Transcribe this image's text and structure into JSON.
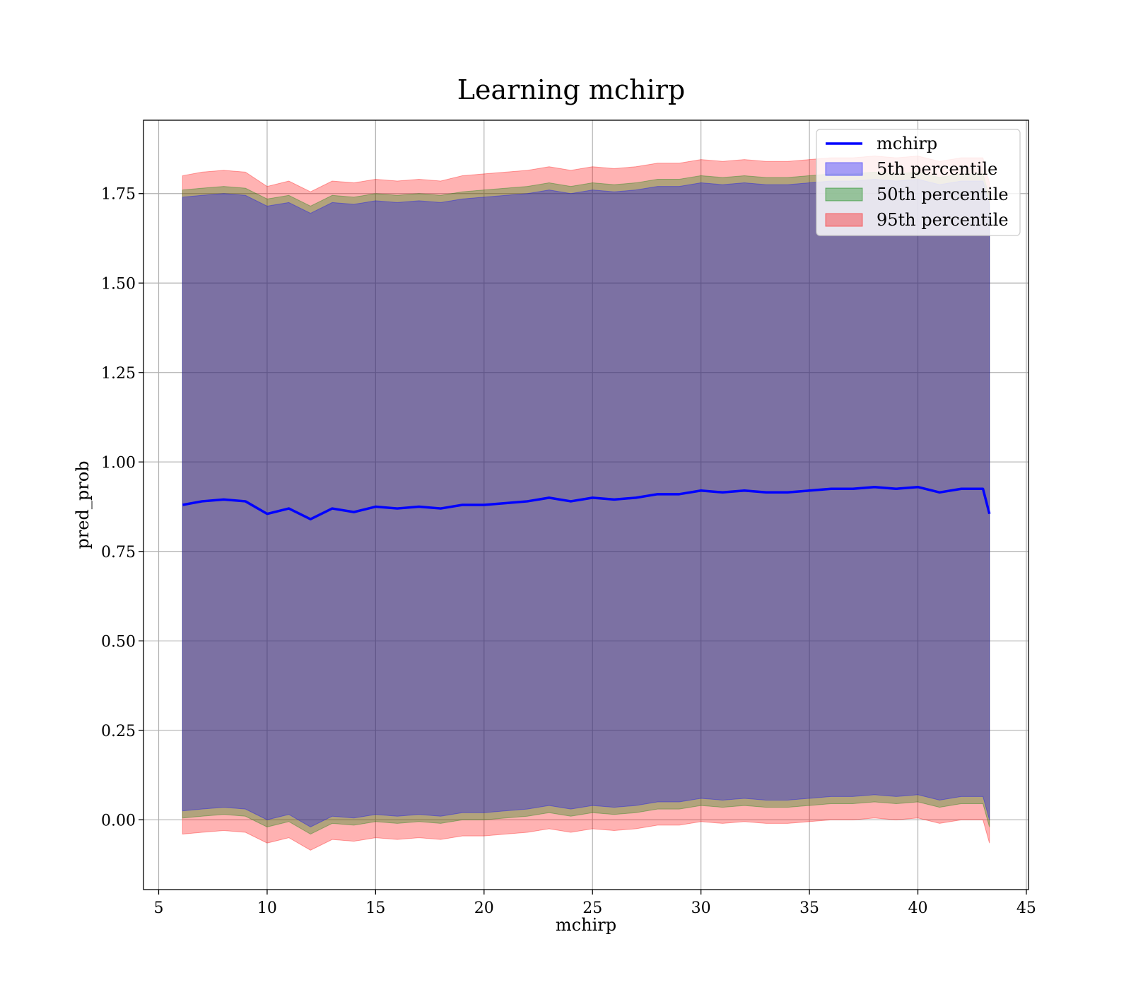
{
  "chart_data": {
    "type": "area",
    "title": "Learning mchirp",
    "xlabel": "mchirp",
    "ylabel": "pred_prob",
    "xlim": [
      4.3,
      45.1
    ],
    "ylim": [
      -0.195,
      1.955
    ],
    "grid": true,
    "legend_position": "top-right",
    "xticks": [
      5,
      10,
      15,
      20,
      25,
      30,
      35,
      40,
      45
    ],
    "xtick_labels": [
      "5",
      "10",
      "15",
      "20",
      "25",
      "30",
      "35",
      "40",
      "45"
    ],
    "yticks": [
      0.0,
      0.25,
      0.5,
      0.75,
      1.0,
      1.25,
      1.5,
      1.75
    ],
    "ytick_labels": [
      "0.00",
      "0.25",
      "0.50",
      "0.75",
      "1.00",
      "1.25",
      "1.50",
      "1.75"
    ],
    "x": [
      6.1,
      7,
      8,
      9,
      10,
      11,
      12,
      13,
      14,
      15,
      16,
      17,
      18,
      19,
      20,
      21,
      22,
      23,
      24,
      25,
      26,
      27,
      28,
      29,
      30,
      31,
      32,
      33,
      34,
      35,
      36,
      37,
      38,
      39,
      40,
      41,
      42,
      43,
      43.3
    ],
    "series": [
      {
        "name": "mchirp",
        "kind": "line",
        "color": "#0000ff",
        "values": [
          0.88,
          0.89,
          0.895,
          0.89,
          0.855,
          0.87,
          0.84,
          0.87,
          0.86,
          0.875,
          0.87,
          0.875,
          0.87,
          0.88,
          0.88,
          0.885,
          0.89,
          0.9,
          0.89,
          0.9,
          0.895,
          0.9,
          0.91,
          0.91,
          0.92,
          0.915,
          0.92,
          0.915,
          0.915,
          0.92,
          0.925,
          0.925,
          0.93,
          0.925,
          0.93,
          0.915,
          0.925,
          0.925,
          0.855
        ]
      },
      {
        "name": "5th percentile",
        "kind": "band",
        "color": "#0000ff",
        "lower": [
          0.025,
          0.03,
          0.035,
          0.03,
          0.0,
          0.015,
          -0.02,
          0.01,
          0.005,
          0.015,
          0.01,
          0.015,
          0.01,
          0.02,
          0.02,
          0.025,
          0.03,
          0.04,
          0.03,
          0.04,
          0.035,
          0.04,
          0.05,
          0.05,
          0.06,
          0.055,
          0.06,
          0.055,
          0.055,
          0.06,
          0.065,
          0.065,
          0.07,
          0.065,
          0.07,
          0.055,
          0.065,
          0.065,
          0.0
        ],
        "upper": [
          1.74,
          1.745,
          1.75,
          1.745,
          1.715,
          1.725,
          1.695,
          1.725,
          1.72,
          1.73,
          1.725,
          1.73,
          1.725,
          1.735,
          1.74,
          1.745,
          1.75,
          1.76,
          1.75,
          1.76,
          1.755,
          1.76,
          1.77,
          1.77,
          1.78,
          1.775,
          1.78,
          1.775,
          1.775,
          1.78,
          1.785,
          1.785,
          1.79,
          1.785,
          1.79,
          1.775,
          1.785,
          1.785,
          1.72
        ]
      },
      {
        "name": "50th percentile",
        "kind": "band",
        "color": "#008000",
        "lower": [
          0.005,
          0.01,
          0.015,
          0.01,
          -0.02,
          -0.005,
          -0.04,
          -0.01,
          -0.015,
          -0.005,
          -0.01,
          -0.005,
          -0.01,
          0.0,
          0.0,
          0.005,
          0.01,
          0.02,
          0.01,
          0.02,
          0.015,
          0.02,
          0.03,
          0.03,
          0.04,
          0.035,
          0.04,
          0.035,
          0.035,
          0.04,
          0.045,
          0.045,
          0.05,
          0.045,
          0.05,
          0.035,
          0.045,
          0.045,
          -0.02
        ],
        "upper": [
          1.76,
          1.765,
          1.77,
          1.765,
          1.735,
          1.745,
          1.715,
          1.745,
          1.74,
          1.75,
          1.745,
          1.75,
          1.745,
          1.755,
          1.76,
          1.765,
          1.77,
          1.78,
          1.77,
          1.78,
          1.775,
          1.78,
          1.79,
          1.79,
          1.8,
          1.795,
          1.8,
          1.795,
          1.795,
          1.8,
          1.805,
          1.805,
          1.81,
          1.805,
          1.81,
          1.795,
          1.805,
          1.805,
          1.74
        ]
      },
      {
        "name": "95th percentile",
        "kind": "band",
        "color": "#ff0000",
        "lower": [
          -0.04,
          -0.035,
          -0.03,
          -0.035,
          -0.065,
          -0.05,
          -0.085,
          -0.055,
          -0.06,
          -0.05,
          -0.055,
          -0.05,
          -0.055,
          -0.045,
          -0.045,
          -0.04,
          -0.035,
          -0.025,
          -0.035,
          -0.025,
          -0.03,
          -0.025,
          -0.015,
          -0.015,
          -0.005,
          -0.01,
          -0.005,
          -0.01,
          -0.01,
          -0.005,
          0.0,
          0.0,
          0.005,
          0.0,
          0.005,
          -0.01,
          0.0,
          0.0,
          -0.065
        ],
        "upper": [
          1.8,
          1.81,
          1.815,
          1.81,
          1.77,
          1.785,
          1.755,
          1.785,
          1.78,
          1.79,
          1.785,
          1.79,
          1.785,
          1.8,
          1.805,
          1.81,
          1.815,
          1.825,
          1.815,
          1.825,
          1.82,
          1.825,
          1.835,
          1.835,
          1.845,
          1.84,
          1.845,
          1.84,
          1.84,
          1.845,
          1.85,
          1.85,
          1.855,
          1.85,
          1.855,
          1.84,
          1.85,
          1.85,
          1.78
        ]
      }
    ]
  }
}
